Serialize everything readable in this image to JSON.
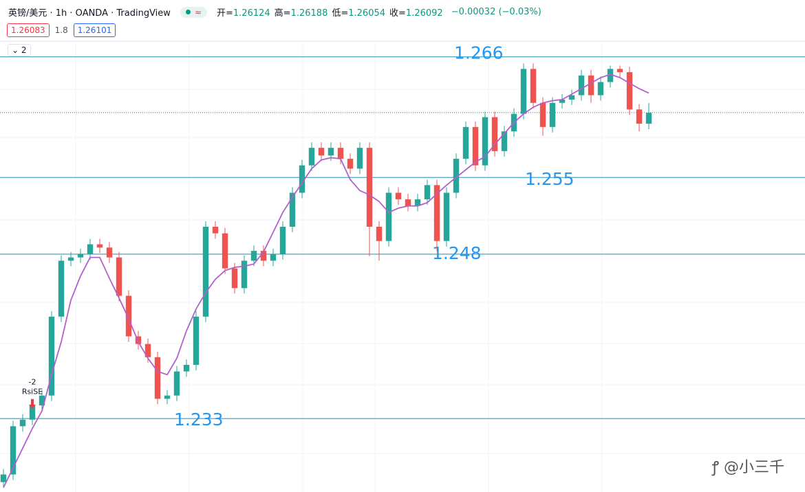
{
  "header": {
    "symbol": "英镑/美元 · 1h · OANDA · TradingView",
    "toggle": "≈",
    "ohlc": [
      {
        "label": "开=",
        "value": 1.26124
      },
      {
        "label": "高=",
        "value": 1.26188
      },
      {
        "label": "低=",
        "value": 1.26054
      },
      {
        "label": "收=",
        "value": 1.26092
      }
    ],
    "change": "−0.00032 (−0.03%)",
    "bid": "1.26083",
    "spread": "1.8",
    "ask": "1.26101",
    "indicator_count": "2"
  },
  "chart_data": {
    "type": "candlestick",
    "ylim": [
      1.2263,
      1.2673
    ],
    "up_color": "#26a69a",
    "down_color": "#ef5350",
    "open": [
      1.2272,
      1.2279,
      1.2323,
      1.2329,
      1.2342,
      1.2351,
      1.2423,
      1.2474,
      1.2477,
      1.248,
      1.2489,
      1.2486,
      1.2477,
      1.2442,
      1.2405,
      1.2398,
      1.2386,
      1.2348,
      1.2351,
      1.2373,
      1.2379,
      1.2423,
      1.2505,
      1.2499,
      1.2467,
      1.2449,
      1.2474,
      1.2483,
      1.2474,
      1.248,
      1.2505,
      1.2536,
      1.2561,
      1.2577,
      1.257,
      1.2577,
      1.2567,
      1.2558,
      1.2577,
      1.2505,
      1.2492,
      1.2536,
      1.253,
      1.2524,
      1.253,
      1.2543,
      1.2492,
      1.2536,
      1.2567,
      1.2596,
      1.2561,
      1.2605,
      1.2574,
      1.2592,
      1.2608,
      1.2649,
      1.2618,
      1.2596,
      1.2618,
      1.2621,
      1.2625,
      1.2643,
      1.2625,
      1.2637,
      1.2649,
      1.2646,
      1.2612,
      1.2599
    ],
    "high": [
      1.2284,
      1.2328,
      1.2334,
      1.2347,
      1.2356,
      1.2428,
      1.2479,
      1.2482,
      1.2485,
      1.2494,
      1.2494,
      1.2491,
      1.2482,
      1.2447,
      1.241,
      1.2403,
      1.2391,
      1.2356,
      1.2378,
      1.2384,
      1.2428,
      1.251,
      1.251,
      1.2504,
      1.2472,
      1.2479,
      1.2488,
      1.2488,
      1.2485,
      1.251,
      1.2541,
      1.2566,
      1.2582,
      1.2582,
      1.2582,
      1.2582,
      1.2572,
      1.2582,
      1.2582,
      1.251,
      1.2541,
      1.2541,
      1.2535,
      1.2535,
      1.2548,
      1.2548,
      1.2541,
      1.2572,
      1.2601,
      1.2601,
      1.261,
      1.261,
      1.2597,
      1.2613,
      1.2654,
      1.2654,
      1.2623,
      1.2623,
      1.2626,
      1.263,
      1.2648,
      1.2648,
      1.2642,
      1.2652,
      1.2652,
      1.2651,
      1.2617,
      1.2618
    ],
    "low": [
      1.2267,
      1.2274,
      1.2318,
      1.2324,
      1.2337,
      1.2346,
      1.2418,
      1.2469,
      1.2472,
      1.2475,
      1.2481,
      1.2472,
      1.2437,
      1.24,
      1.2393,
      1.2381,
      1.2343,
      1.2343,
      1.2346,
      1.2368,
      1.2374,
      1.2418,
      1.2494,
      1.2462,
      1.2444,
      1.2444,
      1.2469,
      1.2469,
      1.2469,
      1.2475,
      1.25,
      1.2531,
      1.2556,
      1.2565,
      1.2565,
      1.2562,
      1.2553,
      1.2553,
      1.2478,
      1.2474,
      1.2487,
      1.2525,
      1.2519,
      1.2519,
      1.2525,
      1.2483,
      1.2487,
      1.2531,
      1.2562,
      1.2556,
      1.2556,
      1.2569,
      1.2569,
      1.2587,
      1.2603,
      1.2613,
      1.2588,
      1.2591,
      1.2613,
      1.2616,
      1.262,
      1.2618,
      1.262,
      1.2632,
      1.2641,
      1.2607,
      1.2592,
      1.2594
    ],
    "close": [
      1.2279,
      1.2323,
      1.2329,
      1.2342,
      1.2351,
      1.2423,
      1.2474,
      1.2477,
      1.248,
      1.2489,
      1.2486,
      1.2477,
      1.2442,
      1.2405,
      1.2398,
      1.2386,
      1.2348,
      1.2351,
      1.2373,
      1.2379,
      1.2423,
      1.2505,
      1.2499,
      1.2467,
      1.2449,
      1.2474,
      1.2483,
      1.2474,
      1.248,
      1.2505,
      1.2536,
      1.2561,
      1.2577,
      1.257,
      1.2577,
      1.2567,
      1.2558,
      1.2577,
      1.2505,
      1.2492,
      1.2536,
      1.253,
      1.2524,
      1.253,
      1.2543,
      1.2492,
      1.2536,
      1.2567,
      1.2596,
      1.2561,
      1.2605,
      1.2574,
      1.2592,
      1.2608,
      1.2649,
      1.2618,
      1.2596,
      1.2618,
      1.2621,
      1.2625,
      1.2643,
      1.2625,
      1.2637,
      1.2649,
      1.2646,
      1.2612,
      1.2599,
      1.2609
    ],
    "ma": {
      "color": "#b45fcc",
      "values": [
        1.2267,
        1.2285,
        1.2303,
        1.2321,
        1.2337,
        1.237,
        1.24,
        1.2438,
        1.246,
        1.2477,
        1.2477,
        1.2458,
        1.244,
        1.2421,
        1.24,
        1.2385,
        1.2373,
        1.237,
        1.2385,
        1.241,
        1.243,
        1.2445,
        1.2457,
        1.2465,
        1.2468,
        1.2469,
        1.2471,
        1.2482,
        1.25,
        1.2518,
        1.2532,
        1.2545,
        1.2558,
        1.2566,
        1.2568,
        1.2567,
        1.2548,
        1.2538,
        1.2534,
        1.2528,
        1.2518,
        1.2522,
        1.2524,
        1.2524,
        1.2527,
        1.2535,
        1.2543,
        1.255,
        1.2557,
        1.2564,
        1.2569,
        1.258,
        1.259,
        1.26,
        1.2608,
        1.2614,
        1.2618,
        1.262,
        1.2621,
        1.2626,
        1.2631,
        1.2636,
        1.2641,
        1.2644,
        1.2641,
        1.2636,
        1.2631,
        1.2627
      ]
    },
    "levels": [
      1.266,
      1.255,
      1.248,
      1.233
    ],
    "level_color": "#1f8fb5",
    "signal": {
      "index": 3,
      "lines": [
        "-2",
        "RsiSE"
      ]
    }
  },
  "watermark": "@小三千"
}
